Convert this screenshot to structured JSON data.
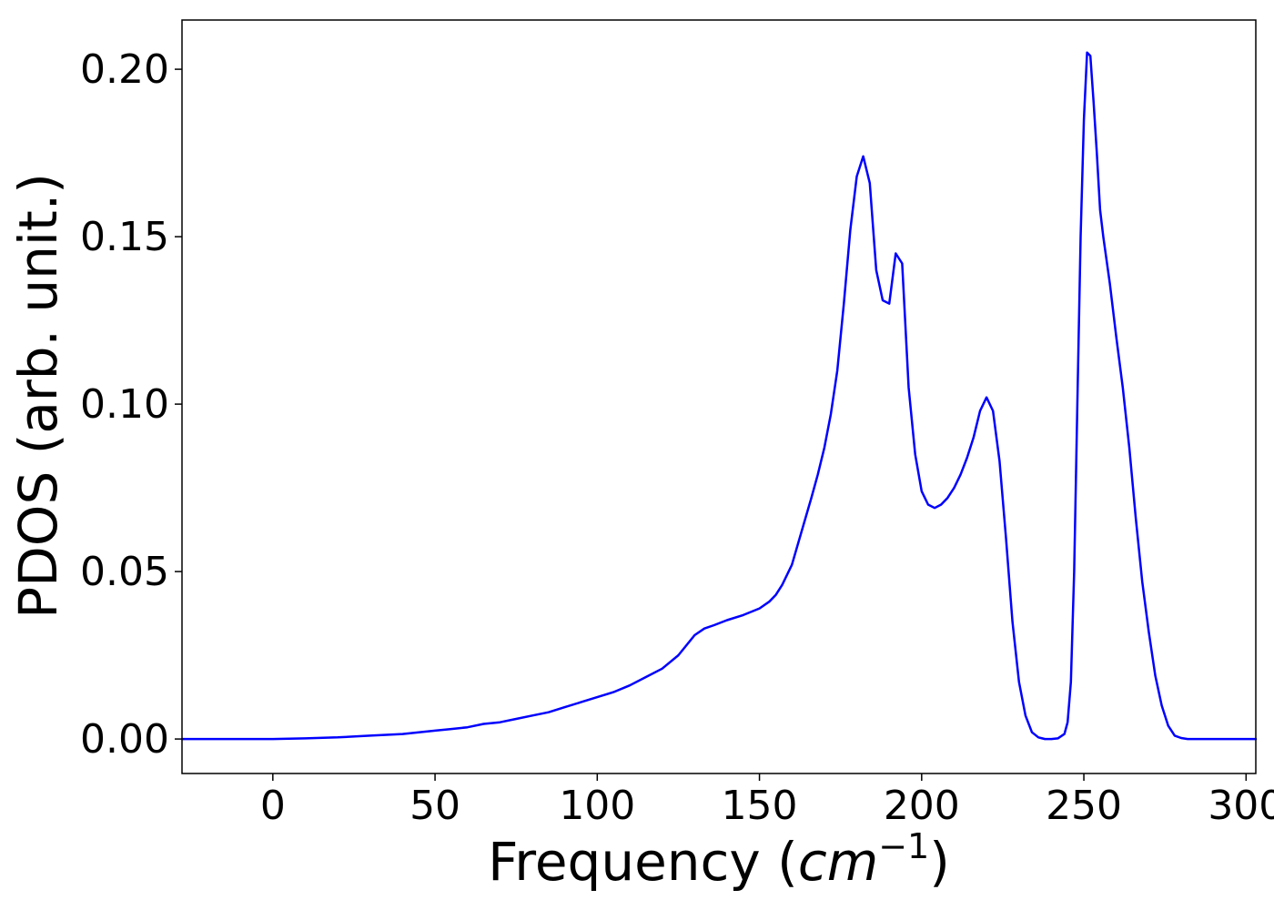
{
  "chart_data": {
    "type": "line",
    "xlabel": {
      "prefix": "Frequency (",
      "var": "cm",
      "exp": "−1",
      "suffix": ")"
    },
    "ylabel": "PDOS (arb. unit.)",
    "xlim": [
      -28,
      303
    ],
    "ylim": [
      -0.0103,
      0.2147
    ],
    "x_ticks": [
      0,
      50,
      100,
      150,
      200,
      250,
      300
    ],
    "x_tick_labels": [
      "0",
      "50",
      "100",
      "150",
      "200",
      "250",
      "300"
    ],
    "y_ticks": [
      0.0,
      0.05,
      0.1,
      0.15,
      0.2
    ],
    "y_tick_labels": [
      "0.00",
      "0.05",
      "0.10",
      "0.15",
      "0.20"
    ],
    "grid": false,
    "series": [
      {
        "color": "#0000ff",
        "x": [
          -28,
          -10,
          0,
          10,
          20,
          30,
          40,
          45,
          50,
          55,
          60,
          65,
          70,
          75,
          80,
          85,
          90,
          95,
          100,
          105,
          110,
          115,
          120,
          125,
          130,
          133,
          136,
          140,
          145,
          150,
          153,
          155,
          157,
          160,
          163,
          166,
          168,
          170,
          172,
          174,
          176,
          178,
          180,
          182,
          184,
          186,
          188,
          190,
          192,
          194,
          196,
          198,
          200,
          202,
          204,
          206,
          208,
          210,
          212,
          214,
          216,
          218,
          220,
          222,
          224,
          226,
          228,
          230,
          232,
          234,
          236,
          238,
          240,
          242,
          244,
          245,
          246,
          247,
          248,
          249,
          250,
          251,
          252,
          253,
          254,
          255,
          256,
          258,
          260,
          262,
          264,
          266,
          268,
          270,
          272,
          274,
          276,
          278,
          280,
          282,
          285,
          290,
          295,
          303
        ],
        "y": [
          0.0,
          0.0,
          0.0,
          0.0002,
          0.0005,
          0.001,
          0.0015,
          0.002,
          0.0025,
          0.003,
          0.0035,
          0.0045,
          0.005,
          0.006,
          0.007,
          0.008,
          0.0095,
          0.011,
          0.0125,
          0.014,
          0.016,
          0.0185,
          0.021,
          0.025,
          0.031,
          0.033,
          0.034,
          0.0355,
          0.037,
          0.039,
          0.041,
          0.043,
          0.046,
          0.052,
          0.062,
          0.072,
          0.079,
          0.087,
          0.097,
          0.11,
          0.13,
          0.152,
          0.168,
          0.174,
          0.166,
          0.14,
          0.131,
          0.13,
          0.145,
          0.142,
          0.105,
          0.085,
          0.074,
          0.07,
          0.069,
          0.07,
          0.072,
          0.075,
          0.079,
          0.084,
          0.09,
          0.098,
          0.102,
          0.098,
          0.083,
          0.06,
          0.035,
          0.017,
          0.007,
          0.002,
          0.0005,
          0.0,
          0.0,
          0.0002,
          0.0015,
          0.005,
          0.017,
          0.05,
          0.1,
          0.15,
          0.185,
          0.205,
          0.204,
          0.19,
          0.175,
          0.158,
          0.15,
          0.136,
          0.12,
          0.105,
          0.087,
          0.066,
          0.047,
          0.032,
          0.019,
          0.01,
          0.004,
          0.001,
          0.0003,
          0.0,
          0.0,
          0.0,
          0.0,
          0.0
        ]
      }
    ]
  }
}
